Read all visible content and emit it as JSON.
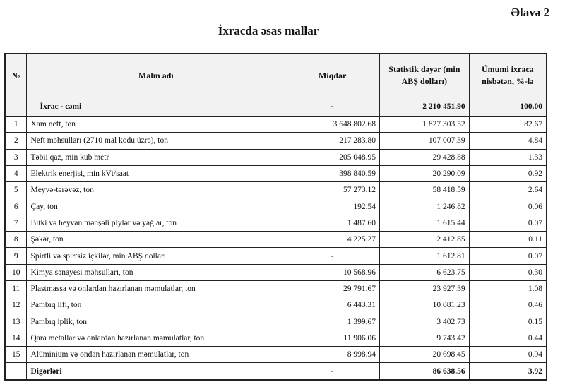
{
  "appendix_label": "Əlavə 2",
  "title": "İxracda əsas mallar",
  "columns": [
    "№",
    "Malın adı",
    "Miqdar",
    "Statistik dəyər (min ABŞ dolları)",
    "Ümumi ixraca nisbətən, %-lə"
  ],
  "total": {
    "name": "İxrac - cəmi",
    "quantity": "-",
    "value": "2 210 451.90",
    "share": "100.00"
  },
  "rows": [
    {
      "no": "1",
      "name": "Xam neft, ton",
      "quantity": "3 648 802.68",
      "value": "1 827 303.52",
      "share": "82.67"
    },
    {
      "no": "2",
      "name": "Neft məhsulları (2710 mal kodu üzrə), ton",
      "quantity": "217 283.80",
      "value": "107 007.39",
      "share": "4.84"
    },
    {
      "no": "3",
      "name": "Təbii qaz, min kub metr",
      "quantity": "205 048.95",
      "value": "29 428.88",
      "share": "1.33"
    },
    {
      "no": "4",
      "name": "Elektrik enerjisi, min kVt/saat",
      "quantity": "398 840.59",
      "value": "20 290.09",
      "share": "0.92"
    },
    {
      "no": "5",
      "name": "Meyvə-tərəvəz, ton",
      "quantity": "57 273.12",
      "value": "58 418.59",
      "share": "2.64"
    },
    {
      "no": "6",
      "name": "Çay, ton",
      "quantity": "192.54",
      "value": "1 246.82",
      "share": "0.06"
    },
    {
      "no": "7",
      "name": "Bitki və heyvan mənşəli piylər və yağlar, ton",
      "quantity": "1 487.60",
      "value": "1 615.44",
      "share": "0.07"
    },
    {
      "no": "8",
      "name": "Şəkər, ton",
      "quantity": "4 225.27",
      "value": "2 412.85",
      "share": "0.11"
    },
    {
      "no": "9",
      "name": "Spirtli və spirtsiz içkilər, min ABŞ dolları",
      "quantity": "-",
      "value": "1 612.81",
      "share": "0.07"
    },
    {
      "no": "10",
      "name": "Kimya sənayesi məhsulları, ton",
      "quantity": "10 568.96",
      "value": "6 623.75",
      "share": "0.30"
    },
    {
      "no": "11",
      "name": "Plastmassa və onlardan hazırlanan məmulatlar, ton",
      "quantity": "29 791.67",
      "value": "23 927.39",
      "share": "1.08"
    },
    {
      "no": "12",
      "name": "Pambıq lifi, ton",
      "quantity": "6 443.31",
      "value": "10 081.23",
      "share": "0.46"
    },
    {
      "no": "13",
      "name": "Pambıq iplik, ton",
      "quantity": "1 399.67",
      "value": "3 402.73",
      "share": "0.15"
    },
    {
      "no": "14",
      "name": "Qara metallar və onlardan hazırlanan məmulatlar, ton",
      "quantity": "11 906.06",
      "value": "9 743.42",
      "share": "0.44"
    },
    {
      "no": "15",
      "name": "Alüminium və ondan hazırlanan məmulatlar, ton",
      "quantity": "8 998.94",
      "value": "20 698.45",
      "share": "0.94"
    }
  ],
  "others": {
    "name": "Digərləri",
    "quantity": "-",
    "value": "86 638.56",
    "share": "3.92"
  }
}
